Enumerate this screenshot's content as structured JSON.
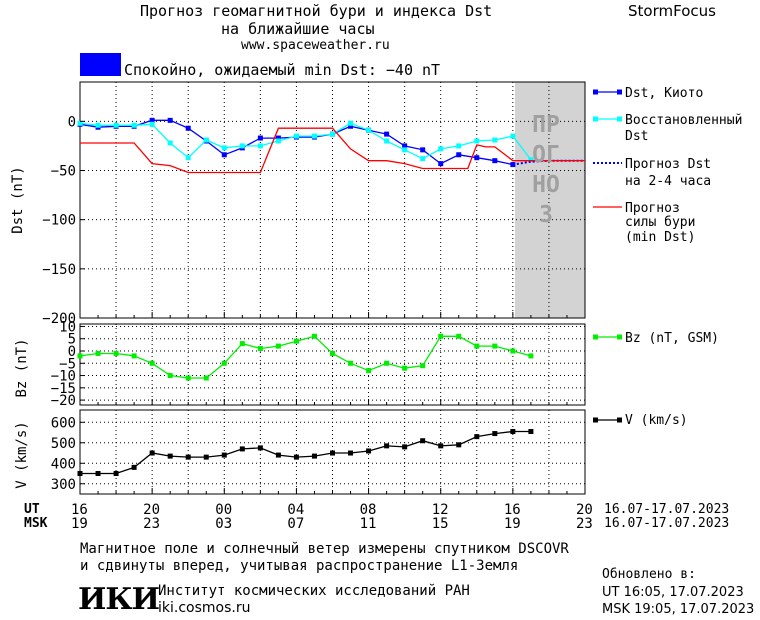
{
  "header": {
    "title_line1": "Прогноз геомагнитной бури и индекса Dst",
    "title_line2": "на ближайшие часы",
    "website": "www.spaceweather.ru",
    "brand": "StormFocus",
    "status_text": "Спокойно, ожидаемый min Dst: −40 nT",
    "status_color": "#0000ff"
  },
  "legend": {
    "dst_kyoto": "Dst, Киото",
    "dst_restored_1": "Восстановленный",
    "dst_restored_2": "Dst",
    "dst_forecast_1": "Прогноз Dst",
    "dst_forecast_2": "на 2-4 часа",
    "storm_forecast_1": "Прогноз",
    "storm_forecast_2": "силы бури",
    "storm_forecast_3": "(min Dst)",
    "bz": "Bz (nT, GSM)",
    "v": "V (km/s)"
  },
  "forecast_band_label": "ПРОГНОЗ",
  "x_axis": {
    "ut_label": "UT",
    "msk_label": "MSK",
    "ut_ticks": [
      "16",
      "20",
      "00",
      "04",
      "08",
      "12",
      "16",
      "20"
    ],
    "msk_ticks": [
      "19",
      "23",
      "03",
      "07",
      "11",
      "15",
      "19",
      "23"
    ],
    "ut_date_range": "16.07-17.07.2023",
    "msk_date_range": "16.07-17.07.2023"
  },
  "footer": {
    "note_line1": "Магнитное поле и солнечный ветер измерены спутником DSCOVR",
    "note_line2": "и сдвинуты вперед, учитывая распространение L1-Земля",
    "institute_logo": "ИКИ",
    "institute_name": "Институт космических исследований РАН",
    "institute_url": "iki.cosmos.ru",
    "updated_label": "Обновлено в:",
    "updated_ut": "UT  16:05, 17.07.2023",
    "updated_msk": "MSK 19:05, 17.07.2023"
  },
  "chart_data": [
    {
      "type": "line",
      "ylabel": "Dst (nT)",
      "ylim": [
        -200,
        40
      ],
      "xlim": [
        16,
        44
      ],
      "yticks": [
        0,
        -50,
        -100,
        -150,
        -200
      ],
      "yticklabels": [
        "0",
        "−50",
        "−100",
        "−150",
        "−200"
      ],
      "forecast_start": 40,
      "series": [
        {
          "name": "Dst, Киото",
          "color": "#0000ff",
          "marker": "square",
          "x": [
            16,
            17,
            18,
            19,
            20,
            21,
            22,
            23,
            24,
            25,
            26,
            27,
            28,
            29,
            30,
            31,
            32,
            33,
            34,
            35,
            36,
            37,
            38,
            39,
            40
          ],
          "y": [
            -3,
            -6,
            -5,
            -5,
            1,
            1,
            -7,
            -20,
            -34,
            -27,
            -17,
            -17,
            -16,
            -16,
            -13,
            -5,
            -9,
            -13,
            -25,
            -29,
            -43,
            -34,
            -37,
            -40,
            -44
          ]
        },
        {
          "name": "Восстановленный Dst",
          "color": "#00ffff",
          "marker": "square",
          "x": [
            16,
            17,
            18,
            19,
            20,
            21,
            22,
            23,
            24,
            25,
            26,
            27,
            28,
            29,
            30,
            31,
            32,
            33,
            34,
            35,
            36,
            37,
            38,
            39,
            40,
            41
          ],
          "y": [
            -2,
            -4,
            -4,
            -4,
            -3,
            -22,
            -37,
            -19,
            -27,
            -25,
            -25,
            -20,
            -15,
            -15,
            -13,
            -2,
            -9,
            -20,
            -29,
            -38,
            -28,
            -25,
            -20,
            -19,
            -15,
            -39
          ]
        },
        {
          "name": "Прогноз Dst на 2-4 часа",
          "color": "#0000ff",
          "style": "dotted",
          "x": [
            40,
            41,
            42,
            43,
            44
          ],
          "y": [
            -44,
            -41,
            -40,
            -40,
            -40
          ]
        },
        {
          "name": "Прогноз силы бури (min Dst)",
          "color": "#ff0000",
          "x": [
            16,
            19,
            20,
            21,
            22,
            23,
            24,
            26,
            27,
            28,
            29,
            30,
            31,
            32,
            33,
            34,
            35,
            36,
            37,
            37.5,
            38,
            38.5,
            39,
            40,
            41,
            42,
            43,
            44
          ],
          "y": [
            -22,
            -22,
            -43,
            -45,
            -52,
            -52,
            -52,
            -52,
            -7,
            -7,
            -7,
            -7,
            -28,
            -40,
            -40,
            -43,
            -48,
            -48,
            -48,
            -48,
            -24,
            -26,
            -26,
            -40,
            -40,
            -40,
            -40,
            -40
          ]
        }
      ]
    },
    {
      "type": "line",
      "ylabel": "Bz (nT)",
      "ylim": [
        -22,
        11
      ],
      "xlim": [
        16,
        44
      ],
      "yticks": [
        10,
        5,
        0,
        -5,
        -10,
        -15,
        -20
      ],
      "yticklabels": [
        "10",
        "5",
        "0",
        "−5",
        "−10",
        "−15",
        "−20"
      ],
      "series": [
        {
          "name": "Bz (nT, GSM)",
          "color": "#00ee00",
          "marker": "square",
          "x": [
            16,
            17,
            18,
            19,
            20,
            21,
            22,
            23,
            24,
            25,
            26,
            27,
            28,
            29,
            30,
            31,
            32,
            33,
            34,
            35,
            36,
            37,
            38,
            39,
            40,
            41
          ],
          "y": [
            -2,
            -1,
            -1,
            -2,
            -5,
            -10,
            -11,
            -11,
            -5,
            3,
            1,
            2,
            4,
            6,
            -1,
            -5,
            -8,
            -5,
            -7,
            -6,
            6,
            6,
            2,
            2,
            0,
            -2
          ]
        }
      ]
    },
    {
      "type": "line",
      "ylabel": "V (km/s)",
      "ylim": [
        250,
        660
      ],
      "xlim": [
        16,
        44
      ],
      "yticks": [
        300,
        400,
        500,
        600
      ],
      "yticklabels": [
        "300",
        "400",
        "500",
        "600"
      ],
      "series": [
        {
          "name": "V (km/s)",
          "color": "#000000",
          "marker": "square",
          "x": [
            16,
            17,
            18,
            19,
            20,
            21,
            22,
            23,
            24,
            25,
            26,
            27,
            28,
            29,
            30,
            31,
            32,
            33,
            34,
            35,
            36,
            37,
            38,
            39,
            40,
            41
          ],
          "y": [
            350,
            350,
            350,
            380,
            450,
            435,
            430,
            430,
            440,
            470,
            475,
            440,
            430,
            435,
            450,
            450,
            460,
            485,
            480,
            510,
            485,
            490,
            530,
            545,
            555,
            555
          ]
        }
      ]
    }
  ]
}
